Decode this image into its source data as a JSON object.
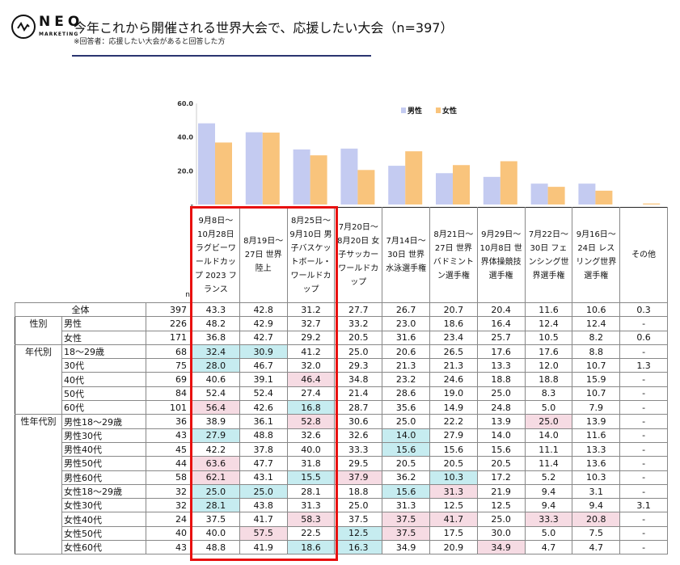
{
  "header": {
    "logo_text": "NEO",
    "logo_sub": "MARKETING",
    "title": "今年これから開催される世界大会で、応援したい大会（n=397）",
    "subtitle": "※回答者：応援したい大会があると回答した方"
  },
  "colors": {
    "male": "#c4cbf1",
    "female": "#f9c47c",
    "low": "#c6ecf0",
    "high": "#f6dbe3",
    "highlight_box": "#e8100f"
  },
  "chart_data": {
    "type": "bar",
    "title": "",
    "xlabel": "",
    "ylabel": "",
    "ylim": [
      0,
      60
    ],
    "yticks": [
      "-",
      "20.0",
      "40.0",
      "60.0"
    ],
    "legend_position": "top-right",
    "categories": [
      "9月8日～10月28日 ラグビーワールドカップ2023 フランス",
      "8月19日～27日 世界陸上",
      "8月25日～9月10日 男子バスケットボール・ワールドカップ",
      "7月20日～8月20日 女子サッカーワールドカップ",
      "7月14日～30日 世界水泳選手権",
      "8月21日～27日 世界バドミントン選手権",
      "9月29日～10月8日 世界体操競技選手権",
      "7月22日～30日 フェンシング世界選手権",
      "9月16日～24日 レスリング世界選手権",
      "その他"
    ],
    "series": [
      {
        "name": "男性",
        "values": [
          48.2,
          42.9,
          32.7,
          33.2,
          23.0,
          18.6,
          16.4,
          12.4,
          12.4,
          0
        ]
      },
      {
        "name": "女性",
        "values": [
          36.8,
          42.7,
          29.2,
          20.5,
          31.6,
          23.4,
          25.7,
          10.5,
          8.2,
          0.6
        ]
      }
    ]
  },
  "table": {
    "n_label": "n",
    "columns": [
      "9月8日～10月28日 ラグビーワールドカップ 2023 フランス",
      "8月19日～27日 世界陸上",
      "8月25日～9月10日 男子バスケットボール・ワールドカップ",
      "7月20日～8月20日 女子サッカーワールドカップ",
      "7月14日～30日 世界水泳選手権",
      "8月21日～27日 世界バドミントン選手権",
      "9月29日～10月8日 世界体操競技選手権",
      "7月22日～30日 フェンシング世界選手権",
      "9月16日～24日 レスリング世界選手権",
      "その他"
    ],
    "groups": [
      {
        "label": "性別",
        "start": 1,
        "span": 2
      },
      {
        "label": "年代別",
        "start": 3,
        "span": 5
      },
      {
        "label": "性年代別",
        "start": 8,
        "span": 10
      }
    ],
    "rows": [
      {
        "label": "全体",
        "n": "397",
        "values": [
          "43.3",
          "42.8",
          "31.2",
          "27.7",
          "26.7",
          "20.7",
          "20.4",
          "11.6",
          "10.6",
          "0.3"
        ],
        "marks": ".........."
      },
      {
        "label": "男性",
        "n": "226",
        "values": [
          "48.2",
          "42.9",
          "32.7",
          "33.2",
          "23.0",
          "18.6",
          "16.4",
          "12.4",
          "12.4",
          "-"
        ],
        "marks": ".........."
      },
      {
        "label": "女性",
        "n": "171",
        "values": [
          "36.8",
          "42.7",
          "29.2",
          "20.5",
          "31.6",
          "23.4",
          "25.7",
          "10.5",
          "8.2",
          "0.6"
        ],
        "marks": ".........."
      },
      {
        "label": "18～29歳",
        "n": "68",
        "values": [
          "32.4",
          "30.9",
          "41.2",
          "25.0",
          "20.6",
          "26.5",
          "17.6",
          "17.6",
          "8.8",
          "-"
        ],
        "marks": "LL........"
      },
      {
        "label": "30代",
        "n": "75",
        "values": [
          "28.0",
          "46.7",
          "32.0",
          "29.3",
          "21.3",
          "21.3",
          "13.3",
          "12.0",
          "10.7",
          "1.3"
        ],
        "marks": "L........."
      },
      {
        "label": "40代",
        "n": "69",
        "values": [
          "40.6",
          "39.1",
          "46.4",
          "34.8",
          "23.2",
          "24.6",
          "18.8",
          "18.8",
          "15.9",
          "-"
        ],
        "marks": "..H......."
      },
      {
        "label": "50代",
        "n": "84",
        "values": [
          "52.4",
          "52.4",
          "27.4",
          "21.4",
          "28.6",
          "19.0",
          "25.0",
          "8.3",
          "10.7",
          "-"
        ],
        "marks": ".........."
      },
      {
        "label": "60代",
        "n": "101",
        "values": [
          "56.4",
          "42.6",
          "16.8",
          "28.7",
          "35.6",
          "14.9",
          "24.8",
          "5.0",
          "7.9",
          "-"
        ],
        "marks": "H.L......."
      },
      {
        "label": "男性18～29歳",
        "n": "36",
        "values": [
          "38.9",
          "36.1",
          "52.8",
          "30.6",
          "25.0",
          "22.2",
          "13.9",
          "25.0",
          "13.9",
          "-"
        ],
        "marks": "..H....H.."
      },
      {
        "label": "男性30代",
        "n": "43",
        "values": [
          "27.9",
          "48.8",
          "32.6",
          "32.6",
          "14.0",
          "27.9",
          "14.0",
          "14.0",
          "11.6",
          "-"
        ],
        "marks": "L...L....."
      },
      {
        "label": "男性40代",
        "n": "45",
        "values": [
          "42.2",
          "37.8",
          "40.0",
          "33.3",
          "15.6",
          "15.6",
          "15.6",
          "11.1",
          "13.3",
          "-"
        ],
        "marks": "....L....."
      },
      {
        "label": "男性50代",
        "n": "44",
        "values": [
          "63.6",
          "47.7",
          "31.8",
          "29.5",
          "20.5",
          "20.5",
          "20.5",
          "11.4",
          "13.6",
          "-"
        ],
        "marks": "H........."
      },
      {
        "label": "男性60代",
        "n": "58",
        "values": [
          "62.1",
          "43.1",
          "15.5",
          "37.9",
          "36.2",
          "10.3",
          "17.2",
          "5.2",
          "10.3",
          "-"
        ],
        "marks": "H.LH.L...."
      },
      {
        "label": "女性18～29歳",
        "n": "32",
        "values": [
          "25.0",
          "25.0",
          "28.1",
          "18.8",
          "15.6",
          "31.3",
          "21.9",
          "9.4",
          "3.1",
          "-"
        ],
        "marks": "LL..LH...."
      },
      {
        "label": "女性30代",
        "n": "32",
        "values": [
          "28.1",
          "43.8",
          "31.3",
          "25.0",
          "31.3",
          "12.5",
          "12.5",
          "9.4",
          "9.4",
          "3.1"
        ],
        "marks": "L........."
      },
      {
        "label": "女性40代",
        "n": "24",
        "values": [
          "37.5",
          "41.7",
          "58.3",
          "37.5",
          "37.5",
          "41.7",
          "25.0",
          "33.3",
          "20.8",
          "-"
        ],
        "marks": "..H.HH.HH."
      },
      {
        "label": "女性50代",
        "n": "40",
        "values": [
          "40.0",
          "57.5",
          "22.5",
          "12.5",
          "37.5",
          "17.5",
          "30.0",
          "5.0",
          "7.5",
          "-"
        ],
        "marks": ".H.LH....."
      },
      {
        "label": "女性60代",
        "n": "43",
        "values": [
          "48.8",
          "41.9",
          "18.6",
          "16.3",
          "34.9",
          "20.9",
          "34.9",
          "4.7",
          "4.7",
          "-"
        ],
        "marks": "..LL..H..."
      }
    ]
  }
}
